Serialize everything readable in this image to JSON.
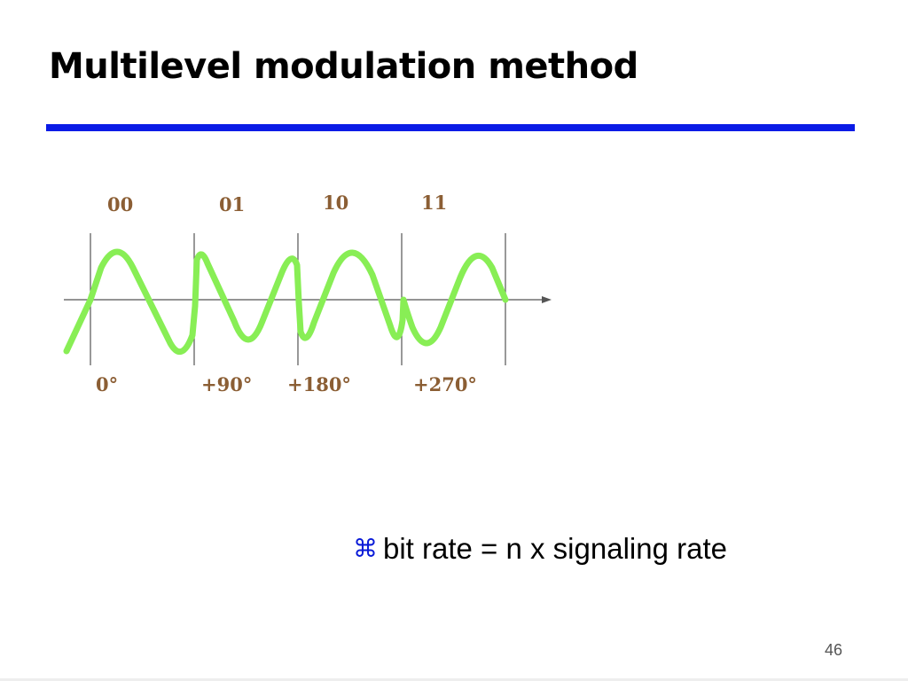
{
  "slide": {
    "title": "Multilevel modulation method",
    "bullet_text": "bit rate = n x signaling rate",
    "page_number": "46"
  },
  "diagram": {
    "bit_groups": [
      "00",
      "01",
      "10",
      "11"
    ],
    "phase_shifts": [
      "0°",
      "+90°",
      "+180°",
      "+270°"
    ]
  },
  "colors": {
    "title_rule": "#0a1be6",
    "wave": "#88ee55",
    "label": "#8b5e34",
    "axis": "#555555",
    "bullet_icon": "#0a1bd8"
  },
  "icons": {
    "bullet": "place-of-interest-icon"
  }
}
